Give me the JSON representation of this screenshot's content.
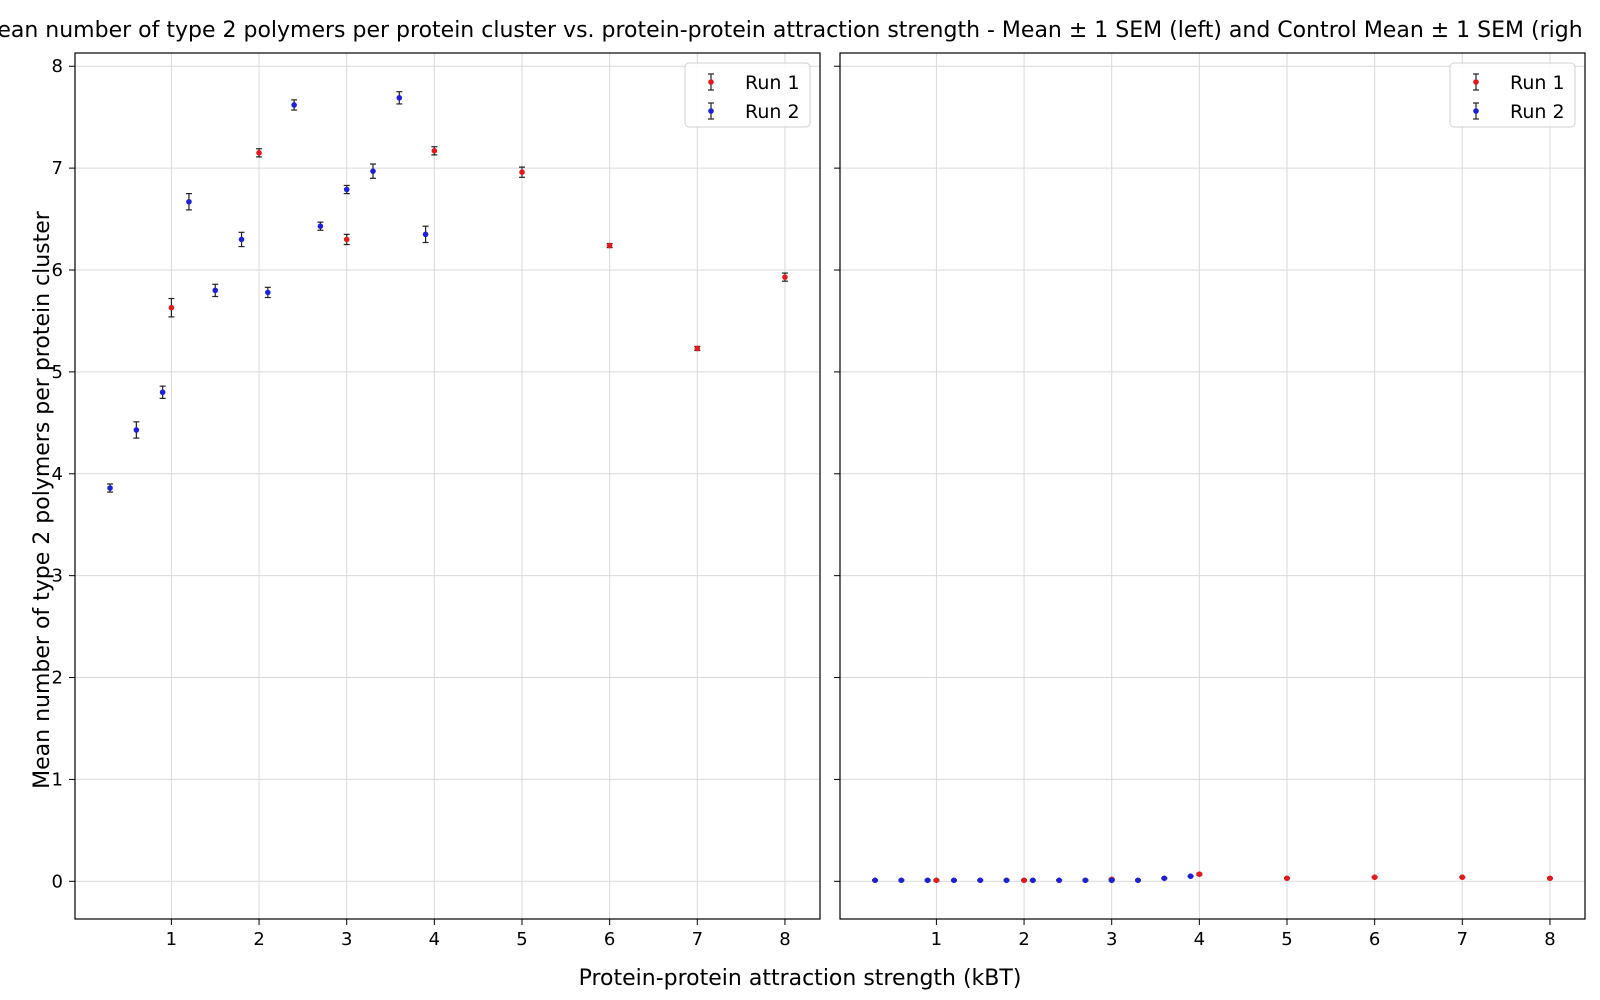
{
  "figure": {
    "title": "ean number of type 2 polymers per protein cluster vs. protein-protein attraction strength - Mean ± 1 SEM (left) and Control Mean ± 1 SEM (righ",
    "xlabel": "Protein-protein attraction strength (kBT)",
    "ylabel": "Mean number of type 2 polymers per protein cluster"
  },
  "colors": {
    "run1": "#e31a1c",
    "run2": "#1f1fd6",
    "errorbar": "#222222",
    "grid": "#d9d9d9"
  },
  "chart_data": [
    {
      "type": "scatter",
      "panel": "left",
      "error_bars": true,
      "grid": true,
      "legend_position": "top-right",
      "xlim": [
        -0.1,
        8.4
      ],
      "ylim": [
        -0.37,
        8.13
      ],
      "xticks": [
        "1",
        "2",
        "3",
        "4",
        "5",
        "6",
        "7",
        "8"
      ],
      "yticks": [
        "0",
        "1",
        "2",
        "3",
        "4",
        "5",
        "6",
        "7",
        "8"
      ],
      "series": [
        {
          "name": "Run 1",
          "color_key": "run1",
          "points": [
            {
              "x": 1,
              "y": 5.63,
              "err": 0.09
            },
            {
              "x": 2,
              "y": 7.15,
              "err": 0.04
            },
            {
              "x": 3,
              "y": 6.3,
              "err": 0.05
            },
            {
              "x": 4,
              "y": 7.17,
              "err": 0.04
            },
            {
              "x": 5,
              "y": 6.96,
              "err": 0.05
            },
            {
              "x": 6,
              "y": 6.24,
              "err": 0.02
            },
            {
              "x": 7,
              "y": 5.23,
              "err": 0.02
            },
            {
              "x": 8,
              "y": 5.93,
              "err": 0.04
            }
          ]
        },
        {
          "name": "Run 2",
          "color_key": "run2",
          "points": [
            {
              "x": 0.3,
              "y": 3.86,
              "err": 0.04
            },
            {
              "x": 0.6,
              "y": 4.43,
              "err": 0.08
            },
            {
              "x": 0.9,
              "y": 4.8,
              "err": 0.06
            },
            {
              "x": 1.2,
              "y": 6.67,
              "err": 0.08
            },
            {
              "x": 1.5,
              "y": 5.8,
              "err": 0.06
            },
            {
              "x": 1.8,
              "y": 6.3,
              "err": 0.07
            },
            {
              "x": 2.1,
              "y": 5.78,
              "err": 0.05
            },
            {
              "x": 2.4,
              "y": 7.62,
              "err": 0.05
            },
            {
              "x": 2.7,
              "y": 6.43,
              "err": 0.04
            },
            {
              "x": 3.0,
              "y": 6.79,
              "err": 0.04
            },
            {
              "x": 3.3,
              "y": 6.97,
              "err": 0.07
            },
            {
              "x": 3.6,
              "y": 7.69,
              "err": 0.06
            },
            {
              "x": 3.9,
              "y": 6.35,
              "err": 0.08
            }
          ]
        }
      ]
    },
    {
      "type": "scatter",
      "panel": "right",
      "error_bars": true,
      "grid": true,
      "legend_position": "top-right",
      "xlim": [
        -0.1,
        8.4
      ],
      "ylim": [
        -0.37,
        8.13
      ],
      "xticks": [
        "1",
        "2",
        "3",
        "4",
        "5",
        "6",
        "7",
        "8"
      ],
      "series": [
        {
          "name": "Run 1",
          "color_key": "run1",
          "points": [
            {
              "x": 1,
              "y": 0.01,
              "err": 0.005
            },
            {
              "x": 2,
              "y": 0.01,
              "err": 0.005
            },
            {
              "x": 3,
              "y": 0.02,
              "err": 0.005
            },
            {
              "x": 4,
              "y": 0.07,
              "err": 0.01
            },
            {
              "x": 5,
              "y": 0.03,
              "err": 0.005
            },
            {
              "x": 6,
              "y": 0.04,
              "err": 0.005
            },
            {
              "x": 7,
              "y": 0.04,
              "err": 0.005
            },
            {
              "x": 8,
              "y": 0.03,
              "err": 0.005
            }
          ]
        },
        {
          "name": "Run 2",
          "color_key": "run2",
          "points": [
            {
              "x": 0.3,
              "y": 0.01,
              "err": 0.005
            },
            {
              "x": 0.6,
              "y": 0.01,
              "err": 0.005
            },
            {
              "x": 0.9,
              "y": 0.01,
              "err": 0.005
            },
            {
              "x": 1.2,
              "y": 0.01,
              "err": 0.005
            },
            {
              "x": 1.5,
              "y": 0.01,
              "err": 0.005
            },
            {
              "x": 1.8,
              "y": 0.01,
              "err": 0.005
            },
            {
              "x": 2.1,
              "y": 0.01,
              "err": 0.005
            },
            {
              "x": 2.4,
              "y": 0.01,
              "err": 0.005
            },
            {
              "x": 2.7,
              "y": 0.01,
              "err": 0.005
            },
            {
              "x": 3.0,
              "y": 0.01,
              "err": 0.005
            },
            {
              "x": 3.3,
              "y": 0.01,
              "err": 0.005
            },
            {
              "x": 3.6,
              "y": 0.03,
              "err": 0.005
            },
            {
              "x": 3.9,
              "y": 0.05,
              "err": 0.005
            }
          ]
        }
      ]
    }
  ]
}
